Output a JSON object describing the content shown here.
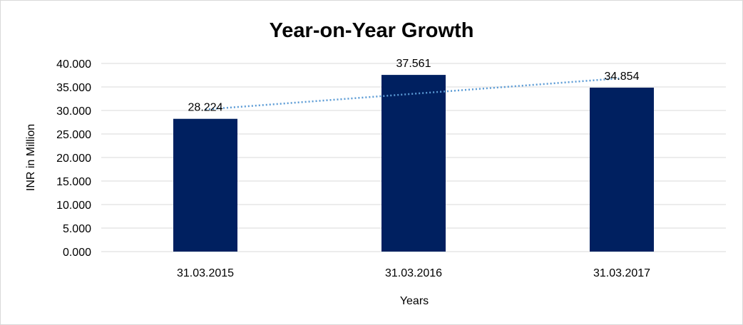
{
  "chart_data": {
    "type": "bar",
    "title": "Year-on-Year Growth",
    "xlabel": "Years",
    "ylabel": "INR in Million",
    "categories": [
      "31.03.2015",
      "31.03.2016",
      "31.03.2017"
    ],
    "values": [
      28.224,
      37.561,
      34.854
    ],
    "value_labels": [
      "28.224",
      "37.561",
      "34.854"
    ],
    "ylim": [
      0,
      40
    ],
    "y_ticks": [
      0,
      5,
      10,
      15,
      20,
      25,
      30,
      35,
      40
    ],
    "y_tick_labels": [
      "0.000",
      "5.000",
      "10.000",
      "15.000",
      "20.000",
      "25.000",
      "30.000",
      "35.000",
      "40.000"
    ],
    "grid": true,
    "legend": "none",
    "trendline": {
      "type": "linear",
      "style": "dotted"
    },
    "colors": {
      "bar": "#002060",
      "trendline": "#5b9bd5",
      "grid": "#d9d9d9"
    }
  }
}
